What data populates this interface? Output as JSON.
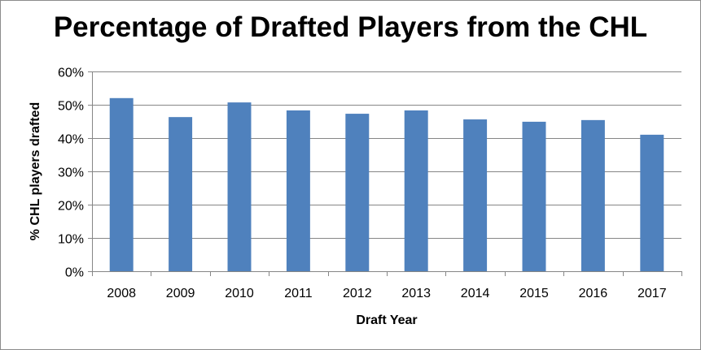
{
  "chart_data": {
    "type": "bar",
    "title": "Percentage of Drafted Players from the CHL",
    "xlabel": "Draft Year",
    "ylabel": "% CHL players drafted",
    "categories": [
      "2008",
      "2009",
      "2010",
      "2011",
      "2012",
      "2013",
      "2014",
      "2015",
      "2016",
      "2017"
    ],
    "values": [
      52.0,
      46.3,
      50.7,
      48.3,
      47.3,
      48.3,
      45.6,
      44.9,
      45.4,
      41.0
    ],
    "ylim": [
      0,
      60
    ],
    "yticks": [
      0,
      10,
      20,
      30,
      40,
      50,
      60
    ],
    "ytick_labels": [
      "0%",
      "10%",
      "20%",
      "30%",
      "40%",
      "50%",
      "60%"
    ],
    "grid": true,
    "legend": "none",
    "bar_color": "#4f81bd",
    "grid_color": "#868686"
  }
}
